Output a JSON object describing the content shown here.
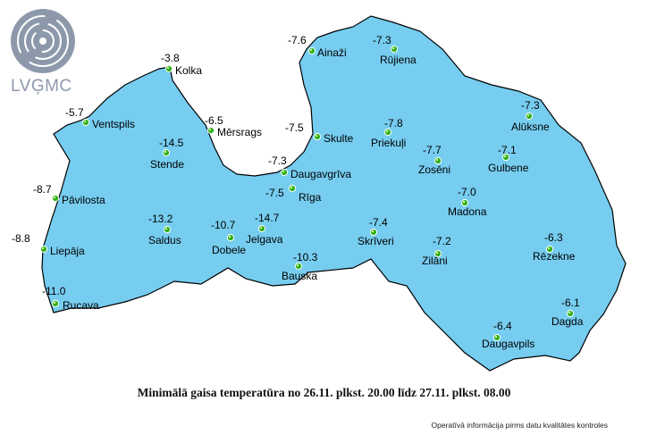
{
  "logo": {
    "text": "LVĢMC",
    "mark": "concentric-swirl-logo"
  },
  "caption": "Minimālā gaisa temperatūra no 26.11. plkst. 20.00 līdz 27.11. plkst. 08.00",
  "note": "Operatīvā informācija pirms datu kvalitātes kontroles",
  "colors": {
    "light": "#76cdf0",
    "mid": "#3aa8ec",
    "dark": "#2182e0",
    "darkest": "#1566cc",
    "pale": "#9fdcf2",
    "isoline": "#c58be8",
    "station": "#33b019"
  },
  "stations": [
    {
      "name": "Kolka",
      "value": "-3.8"
    },
    {
      "name": "Ainaži",
      "value": "-7.6"
    },
    {
      "name": "Rūjiena",
      "value": "-7.3"
    },
    {
      "name": "Ventspils",
      "value": "-5.7"
    },
    {
      "name": "Mērsrags",
      "value": "-6.5"
    },
    {
      "name": "Skulte",
      "value": "-7.5"
    },
    {
      "name": "Priekuļi",
      "value": "-7.8"
    },
    {
      "name": "Alūksne",
      "value": "-7.3"
    },
    {
      "name": "Stende",
      "value": "-14.5"
    },
    {
      "name": "Daugavgrīva",
      "value": "-7.3"
    },
    {
      "name": "Zosēni",
      "value": "-7.7"
    },
    {
      "name": "Gulbene",
      "value": "-7.1"
    },
    {
      "name": "Pāvilosta",
      "value": "-8.7"
    },
    {
      "name": "Rīga",
      "value": "-7.5"
    },
    {
      "name": "Madona",
      "value": "-7.0"
    },
    {
      "name": "Saldus",
      "value": "-13.2"
    },
    {
      "name": "Dobele",
      "value": "-10.7"
    },
    {
      "name": "Jelgava",
      "value": "-14.7"
    },
    {
      "name": "Skrīveri",
      "value": "-7.4"
    },
    {
      "name": "Zilāni",
      "value": "-7.2"
    },
    {
      "name": "Rēzekne",
      "value": "-6.3"
    },
    {
      "name": "Liepāja",
      "value": "-8.8"
    },
    {
      "name": "Bauska",
      "value": "-10.3"
    },
    {
      "name": "Rucava",
      "value": "-11.0"
    },
    {
      "name": "Dagda",
      "value": "-6.1"
    },
    {
      "name": "Daugavpils",
      "value": "-6.4"
    }
  ]
}
